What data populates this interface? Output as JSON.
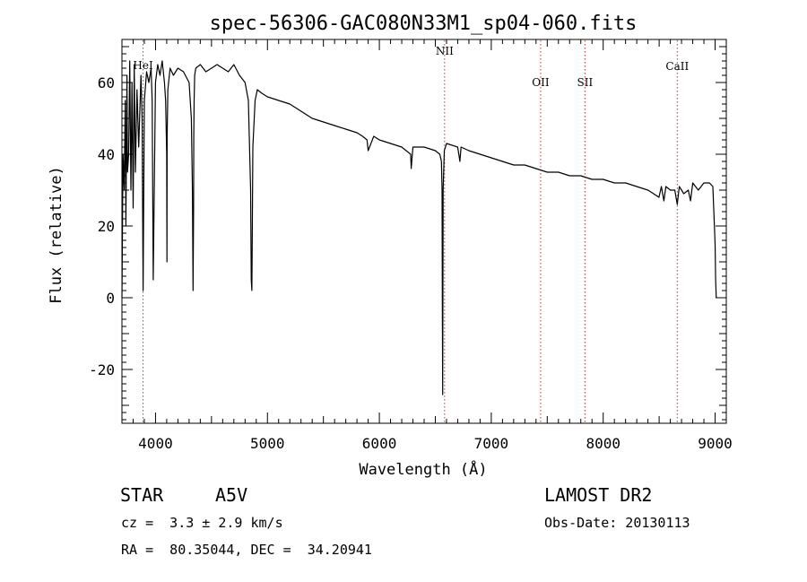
{
  "chart_data": {
    "type": "line",
    "title": "spec-56306-GAC080N33M1_sp04-060.fits",
    "xlabel": "Wavelength (Å)",
    "ylabel": "Flux (relative)",
    "xlim": [
      3700,
      9100
    ],
    "ylim": [
      -35,
      72
    ],
    "x_ticks": [
      4000,
      5000,
      6000,
      7000,
      8000,
      9000
    ],
    "y_ticks": [
      -20,
      0,
      20,
      40,
      60
    ],
    "grid": false,
    "spectral_lines": [
      {
        "name": "HeI",
        "wavelength": 3889
      },
      {
        "name": "NII",
        "wavelength": 6583
      },
      {
        "name": "OII",
        "wavelength": 7441
      },
      {
        "name": "SII",
        "wavelength": 7837
      },
      {
        "name": "CaII",
        "wavelength": 8662
      }
    ],
    "series": [
      {
        "color": "#000000",
        "x": [
          3700,
          3710,
          3720,
          3730,
          3735,
          3745,
          3750,
          3760,
          3770,
          3780,
          3790,
          3800,
          3810,
          3820,
          3835,
          3850,
          3870,
          3880,
          3889,
          3900,
          3920,
          3940,
          3960,
          3970,
          3980,
          4000,
          4020,
          4040,
          4060,
          4080,
          4090,
          4100,
          4102,
          4104,
          4110,
          4130,
          4160,
          4200,
          4250,
          4300,
          4320,
          4330,
          4335,
          4340,
          4342,
          4345,
          4350,
          4360,
          4400,
          4450,
          4500,
          4550,
          4600,
          4650,
          4700,
          4750,
          4800,
          4830,
          4850,
          4855,
          4861,
          4865,
          4870,
          4890,
          4910,
          4950,
          5000,
          5100,
          5200,
          5300,
          5400,
          5500,
          5600,
          5700,
          5800,
          5850,
          5890,
          5900,
          5950,
          6000,
          6100,
          6200,
          6280,
          6285,
          6300,
          6400,
          6500,
          6540,
          6555,
          6560,
          6563,
          6566,
          6570,
          6580,
          6600,
          6700,
          6710,
          6720,
          6730,
          6800,
          6900,
          7000,
          7100,
          7200,
          7300,
          7400,
          7500,
          7600,
          7700,
          7800,
          7900,
          8000,
          8100,
          8200,
          8300,
          8400,
          8450,
          8498,
          8520,
          8542,
          8560,
          8600,
          8640,
          8662,
          8680,
          8720,
          8760,
          8780,
          8800,
          8850,
          8900,
          8950,
          8980,
          9000,
          9005,
          9010
        ],
        "y": [
          0,
          40,
          30,
          55,
          20,
          62,
          35,
          40,
          66,
          30,
          60,
          25,
          65,
          35,
          58,
          42,
          62,
          50,
          2,
          55,
          63,
          60,
          64,
          55,
          5,
          60,
          65,
          62,
          66,
          60,
          55,
          40,
          10,
          45,
          58,
          64,
          62,
          64,
          63,
          60,
          50,
          30,
          2,
          25,
          45,
          55,
          62,
          64,
          65,
          63,
          64,
          65,
          64,
          63,
          65,
          62,
          60,
          55,
          30,
          5,
          2,
          20,
          42,
          55,
          58,
          57,
          56,
          55,
          54,
          52,
          50,
          49,
          48,
          47,
          46,
          45,
          44,
          41,
          45,
          44,
          43,
          42,
          40,
          36,
          42,
          42,
          41,
          40,
          38,
          30,
          0,
          -27,
          30,
          41,
          43,
          42,
          40,
          38,
          42,
          41,
          40,
          39,
          38,
          37,
          37,
          36,
          35,
          35,
          34,
          34,
          33,
          33,
          32,
          32,
          31,
          30,
          29,
          28,
          31,
          27,
          31,
          30,
          30,
          26,
          31,
          29,
          30,
          27,
          32,
          30,
          32,
          32,
          31,
          15,
          5,
          0
        ]
      }
    ]
  },
  "info": {
    "object_class": "STAR",
    "subclass": "A5V",
    "survey": "LAMOST DR2",
    "redshift": "cz =  3.3 ± 2.9 km/s",
    "obs_date": "Obs-Date: 20130113",
    "coords": "RA =  80.35044, DEC =  34.20941"
  }
}
